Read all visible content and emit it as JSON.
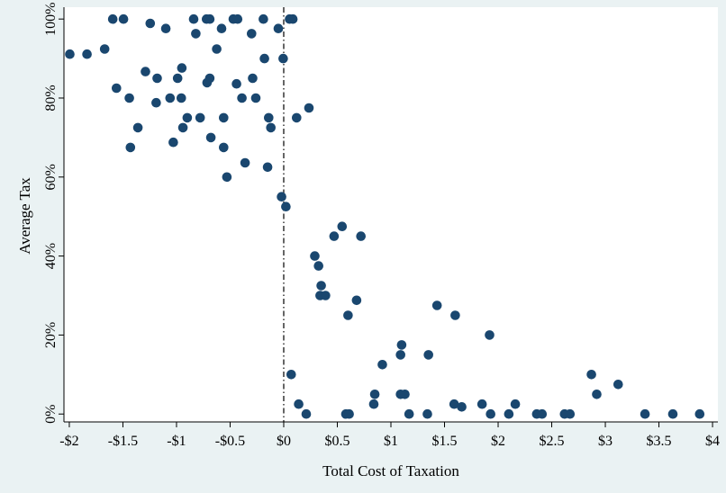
{
  "chart_data": {
    "type": "scatter",
    "title": "",
    "xlabel": "Total Cost of Taxation",
    "ylabel": "Average Tax",
    "xlim": [
      -2.05,
      4.05
    ],
    "ylim": [
      -0.02,
      1.03
    ],
    "x_ticks": [
      {
        "value": -2,
        "label": "-$2"
      },
      {
        "value": -1.5,
        "label": "-$1.5"
      },
      {
        "value": -1,
        "label": "-$1"
      },
      {
        "value": -0.5,
        "label": "-$0.5"
      },
      {
        "value": 0,
        "label": "$0"
      },
      {
        "value": 0.5,
        "label": "$0.5"
      },
      {
        "value": 1,
        "label": "$1"
      },
      {
        "value": 1.5,
        "label": "$1.5"
      },
      {
        "value": 2,
        "label": "$2"
      },
      {
        "value": 2.5,
        "label": "$2.5"
      },
      {
        "value": 3,
        "label": "$3"
      },
      {
        "value": 3.5,
        "label": "$3.5"
      },
      {
        "value": 4,
        "label": "$4"
      }
    ],
    "y_ticks": [
      {
        "value": 0,
        "label": "0%"
      },
      {
        "value": 0.2,
        "label": "20%"
      },
      {
        "value": 0.4,
        "label": "40%"
      },
      {
        "value": 0.6,
        "label": "60%"
      },
      {
        "value": 0.8,
        "label": "80%"
      },
      {
        "value": 1,
        "label": "100%"
      }
    ],
    "reference_line": {
      "x": 0,
      "style": "dash-dot"
    },
    "grid": false,
    "marker_color": "#1a476f",
    "background_color": "#eaf2f3",
    "plot_background_color": "#ffffff",
    "points": [
      {
        "x": -1.995,
        "y": 0.911
      },
      {
        "x": -1.835,
        "y": 0.911
      },
      {
        "x": -1.67,
        "y": 0.924
      },
      {
        "x": -1.595,
        "y": 1.0
      },
      {
        "x": -1.495,
        "y": 1.0
      },
      {
        "x": -1.245,
        "y": 0.989
      },
      {
        "x": -1.1,
        "y": 0.976
      },
      {
        "x": -0.84,
        "y": 1.0
      },
      {
        "x": -0.72,
        "y": 1.0
      },
      {
        "x": -0.69,
        "y": 1.0
      },
      {
        "x": -0.47,
        "y": 1.0
      },
      {
        "x": -0.43,
        "y": 1.0
      },
      {
        "x": -0.19,
        "y": 1.0
      },
      {
        "x": 0.055,
        "y": 1.0
      },
      {
        "x": 0.085,
        "y": 1.0
      },
      {
        "x": -0.82,
        "y": 0.963
      },
      {
        "x": -0.58,
        "y": 0.976
      },
      {
        "x": -0.3,
        "y": 0.963
      },
      {
        "x": -0.05,
        "y": 0.976
      },
      {
        "x": -0.625,
        "y": 0.924
      },
      {
        "x": -0.18,
        "y": 0.9
      },
      {
        "x": -0.005,
        "y": 0.9
      },
      {
        "x": -0.95,
        "y": 0.876
      },
      {
        "x": -1.29,
        "y": 0.867
      },
      {
        "x": -1.18,
        "y": 0.85
      },
      {
        "x": -0.99,
        "y": 0.85
      },
      {
        "x": -0.69,
        "y": 0.85
      },
      {
        "x": -0.715,
        "y": 0.839
      },
      {
        "x": -0.44,
        "y": 0.836
      },
      {
        "x": -0.29,
        "y": 0.85
      },
      {
        "x": -1.56,
        "y": 0.825
      },
      {
        "x": -1.44,
        "y": 0.8
      },
      {
        "x": -1.19,
        "y": 0.788
      },
      {
        "x": -1.06,
        "y": 0.8
      },
      {
        "x": -0.955,
        "y": 0.8
      },
      {
        "x": -0.39,
        "y": 0.8
      },
      {
        "x": -0.26,
        "y": 0.8
      },
      {
        "x": -0.9,
        "y": 0.75
      },
      {
        "x": -0.78,
        "y": 0.75
      },
      {
        "x": -0.56,
        "y": 0.75
      },
      {
        "x": -0.14,
        "y": 0.75
      },
      {
        "x": 0.12,
        "y": 0.75
      },
      {
        "x": 0.235,
        "y": 0.775
      },
      {
        "x": -1.36,
        "y": 0.725
      },
      {
        "x": -0.94,
        "y": 0.725
      },
      {
        "x": -0.12,
        "y": 0.725
      },
      {
        "x": -1.03,
        "y": 0.688
      },
      {
        "x": -0.68,
        "y": 0.7
      },
      {
        "x": -1.43,
        "y": 0.675
      },
      {
        "x": -0.56,
        "y": 0.675
      },
      {
        "x": -0.36,
        "y": 0.636
      },
      {
        "x": -0.15,
        "y": 0.625
      },
      {
        "x": -0.53,
        "y": 0.6
      },
      {
        "x": -0.02,
        "y": 0.55
      },
      {
        "x": 0.02,
        "y": 0.525
      },
      {
        "x": 0.545,
        "y": 0.475
      },
      {
        "x": 0.47,
        "y": 0.45
      },
      {
        "x": 0.72,
        "y": 0.45
      },
      {
        "x": 0.29,
        "y": 0.4
      },
      {
        "x": 0.325,
        "y": 0.375
      },
      {
        "x": 0.35,
        "y": 0.325
      },
      {
        "x": 0.34,
        "y": 0.3
      },
      {
        "x": 0.39,
        "y": 0.3
      },
      {
        "x": 0.68,
        "y": 0.288
      },
      {
        "x": 0.6,
        "y": 0.25
      },
      {
        "x": 1.43,
        "y": 0.275
      },
      {
        "x": 1.6,
        "y": 0.25
      },
      {
        "x": 1.92,
        "y": 0.2
      },
      {
        "x": 1.1,
        "y": 0.175
      },
      {
        "x": 1.09,
        "y": 0.15
      },
      {
        "x": 1.35,
        "y": 0.15
      },
      {
        "x": 0.92,
        "y": 0.125
      },
      {
        "x": 0.07,
        "y": 0.1
      },
      {
        "x": 2.87,
        "y": 0.1
      },
      {
        "x": 3.12,
        "y": 0.075
      },
      {
        "x": 2.92,
        "y": 0.05
      },
      {
        "x": 0.85,
        "y": 0.05
      },
      {
        "x": 1.09,
        "y": 0.05
      },
      {
        "x": 1.13,
        "y": 0.05
      },
      {
        "x": 0.14,
        "y": 0.025
      },
      {
        "x": 0.84,
        "y": 0.025
      },
      {
        "x": 1.59,
        "y": 0.025
      },
      {
        "x": 1.66,
        "y": 0.018
      },
      {
        "x": 1.85,
        "y": 0.025
      },
      {
        "x": 2.16,
        "y": 0.025
      },
      {
        "x": 0.21,
        "y": 0.0
      },
      {
        "x": 0.58,
        "y": 0.0
      },
      {
        "x": 0.61,
        "y": 0.0
      },
      {
        "x": 1.17,
        "y": 0.0
      },
      {
        "x": 1.34,
        "y": 0.0
      },
      {
        "x": 1.93,
        "y": 0.0
      },
      {
        "x": 2.1,
        "y": 0.0
      },
      {
        "x": 2.36,
        "y": 0.0
      },
      {
        "x": 2.41,
        "y": 0.0
      },
      {
        "x": 2.62,
        "y": 0.0
      },
      {
        "x": 2.67,
        "y": 0.0
      },
      {
        "x": 3.37,
        "y": 0.0
      },
      {
        "x": 3.63,
        "y": 0.0
      },
      {
        "x": 3.88,
        "y": 0.0
      }
    ]
  }
}
